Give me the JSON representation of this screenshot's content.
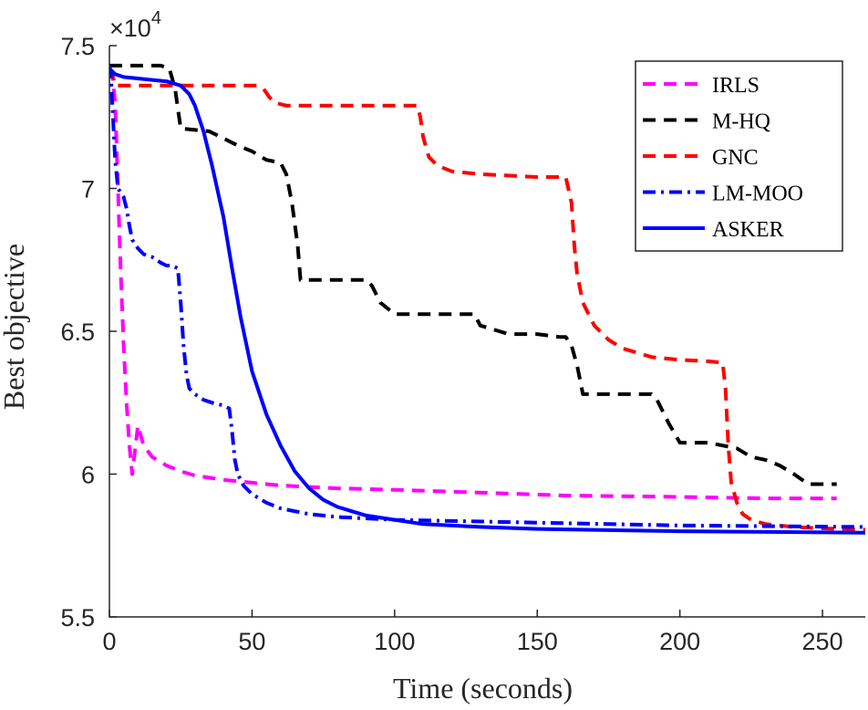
{
  "chart_data": {
    "type": "line",
    "title": "",
    "xlabel": "Time (seconds)",
    "ylabel": "Best objective",
    "xlim": [
      0,
      265
    ],
    "ylim": [
      5.5,
      7.5
    ],
    "y_multiplier": {
      "base": "×10",
      "exponent": "4"
    },
    "xticks": [
      0,
      50,
      100,
      150,
      200,
      250
    ],
    "xtick_labels": [
      "0",
      "50",
      "100",
      "150",
      "200",
      "250"
    ],
    "yticks": [
      5.5,
      6,
      6.5,
      7,
      7.5
    ],
    "ytick_labels": [
      "5.5",
      "6",
      "6.5",
      "7",
      "7.5"
    ],
    "grid": false,
    "legend_position": "top-right",
    "series": [
      {
        "name": "IRLS",
        "color": "#ff00ff",
        "dash": "dashed",
        "x": [
          0,
          1,
          2,
          3,
          3.5,
          4,
          5,
          6,
          7,
          8,
          10,
          12,
          15,
          20,
          25,
          30,
          40,
          50,
          60,
          80,
          100,
          130,
          160,
          200,
          230,
          255
        ],
        "y": [
          7.42,
          7.4,
          7.3,
          7.0,
          6.85,
          6.7,
          6.45,
          6.25,
          6.1,
          6.0,
          6.17,
          6.1,
          6.06,
          6.03,
          6.01,
          5.995,
          5.98,
          5.97,
          5.96,
          5.95,
          5.945,
          5.935,
          5.925,
          5.92,
          5.915,
          5.915
        ]
      },
      {
        "name": "M-HQ",
        "color": "#000000",
        "dash": "dashed",
        "x": [
          0,
          5,
          18,
          21,
          23,
          25,
          35,
          45,
          50,
          55,
          60,
          62,
          64,
          66,
          67,
          75,
          85,
          90,
          92,
          95,
          100,
          110,
          120,
          128,
          130,
          140,
          150,
          158,
          160,
          162,
          164,
          166,
          170,
          180,
          190,
          192,
          196,
          200,
          210,
          215,
          220,
          225,
          230,
          235,
          240,
          245,
          255
        ],
        "y": [
          7.43,
          7.43,
          7.43,
          7.42,
          7.35,
          7.21,
          7.2,
          7.15,
          7.13,
          7.1,
          7.09,
          7.05,
          6.95,
          6.8,
          6.68,
          6.68,
          6.68,
          6.68,
          6.66,
          6.6,
          6.56,
          6.56,
          6.56,
          6.56,
          6.52,
          6.49,
          6.49,
          6.48,
          6.48,
          6.45,
          6.38,
          6.28,
          6.28,
          6.28,
          6.28,
          6.26,
          6.18,
          6.11,
          6.11,
          6.1,
          6.09,
          6.06,
          6.05,
          6.03,
          6.0,
          5.965,
          5.965
        ]
      },
      {
        "name": "GNC",
        "color": "#ff0000",
        "dash": "dashed",
        "x": [
          0,
          1,
          2,
          10,
          20,
          30,
          40,
          52,
          54,
          56,
          58,
          62,
          70,
          80,
          90,
          100,
          108,
          109,
          110,
          112,
          115,
          120,
          130,
          140,
          150,
          160,
          162,
          163,
          164,
          166,
          170,
          175,
          180,
          190,
          200,
          210,
          215,
          216,
          217,
          218,
          220,
          222,
          225,
          230,
          240,
          250,
          265
        ],
        "y": [
          7.42,
          7.4,
          7.36,
          7.36,
          7.36,
          7.36,
          7.36,
          7.36,
          7.35,
          7.32,
          7.3,
          7.29,
          7.29,
          7.29,
          7.29,
          7.29,
          7.29,
          7.25,
          7.18,
          7.11,
          7.08,
          7.06,
          7.05,
          7.045,
          7.04,
          7.04,
          6.95,
          6.8,
          6.7,
          6.6,
          6.52,
          6.47,
          6.44,
          6.41,
          6.4,
          6.395,
          6.39,
          6.3,
          6.1,
          5.97,
          5.9,
          5.86,
          5.84,
          5.825,
          5.815,
          5.81,
          5.805
        ]
      },
      {
        "name": "LM-MOO",
        "color": "#0000ff",
        "dash": "dashdot",
        "x": [
          0,
          0.5,
          1,
          2,
          3,
          5,
          6,
          7,
          8,
          10,
          12,
          15,
          18,
          20,
          22,
          24,
          25,
          26,
          27,
          28,
          30,
          33,
          36,
          40,
          42,
          43,
          44,
          45,
          47,
          50,
          55,
          60,
          70,
          80,
          100,
          150,
          200,
          265
        ],
        "y": [
          7.43,
          7.4,
          7.3,
          7.1,
          7.0,
          6.97,
          6.93,
          6.87,
          6.82,
          6.79,
          6.77,
          6.76,
          6.74,
          6.73,
          6.73,
          6.72,
          6.6,
          6.45,
          6.35,
          6.3,
          6.28,
          6.26,
          6.25,
          6.24,
          6.23,
          6.15,
          6.05,
          6.0,
          5.96,
          5.93,
          5.9,
          5.88,
          5.86,
          5.85,
          5.84,
          5.83,
          5.82,
          5.815
        ]
      },
      {
        "name": "ASKER",
        "color": "#0000ff",
        "dash": "solid",
        "x": [
          0,
          2,
          5,
          10,
          15,
          20,
          25,
          28,
          30,
          33,
          36,
          40,
          43,
          46,
          50,
          55,
          60,
          65,
          70,
          75,
          80,
          90,
          100,
          110,
          130,
          150,
          200,
          265
        ],
        "y": [
          7.42,
          7.4,
          7.39,
          7.385,
          7.38,
          7.375,
          7.36,
          7.33,
          7.29,
          7.2,
          7.08,
          6.9,
          6.72,
          6.55,
          6.36,
          6.21,
          6.1,
          6.01,
          5.95,
          5.91,
          5.885,
          5.855,
          5.84,
          5.825,
          5.815,
          5.808,
          5.8,
          5.795
        ]
      }
    ]
  }
}
